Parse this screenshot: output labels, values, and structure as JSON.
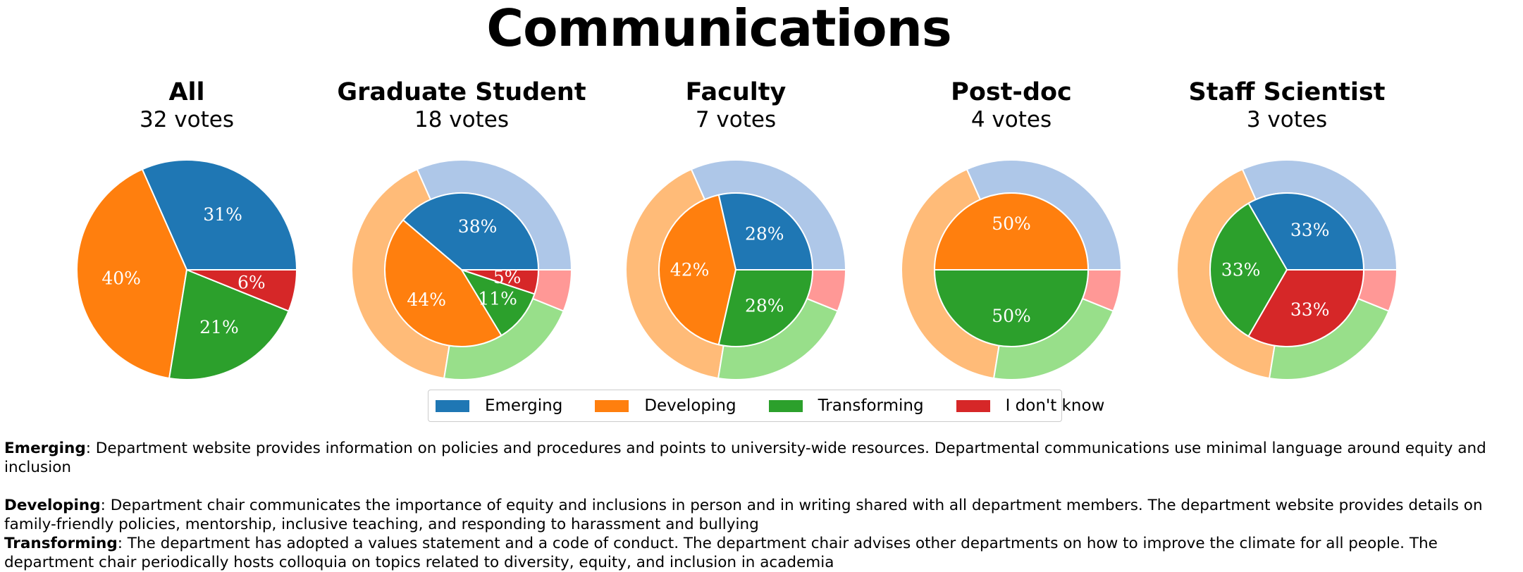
{
  "title": "Communications",
  "colors": {
    "Emerging": "#1f77b4",
    "Developing": "#ff7f0e",
    "Transforming": "#2ca02c",
    "I don't know": "#d62728"
  },
  "light_colors": {
    "Emerging": "#aec7e8",
    "Developing": "#ffbb78",
    "Transforming": "#98df8a",
    "I don't know": "#ff9896"
  },
  "legend": [
    {
      "label": "Emerging",
      "color": "#1f77b4"
    },
    {
      "label": "Developing",
      "color": "#ff7f0e"
    },
    {
      "label": "Transforming",
      "color": "#2ca02c"
    },
    {
      "label": "I don't know",
      "color": "#d62728"
    }
  ],
  "chart_data": [
    {
      "type": "pie",
      "title": "All",
      "votes_label": "32 votes",
      "categories": [
        "Emerging",
        "Developing",
        "Transforming",
        "I don't know"
      ],
      "values": [
        31,
        40,
        21,
        6
      ],
      "labels": [
        "31%",
        "40%",
        "21%",
        "6%"
      ],
      "outer_ring_values": null
    },
    {
      "type": "pie",
      "title": "Graduate Student",
      "votes_label": "18 votes",
      "categories": [
        "Emerging",
        "Developing",
        "Transforming",
        "I don't know"
      ],
      "values": [
        38,
        44,
        11,
        5
      ],
      "labels": [
        "38%",
        "44%",
        "11%",
        "5%"
      ],
      "outer_ring_values": [
        31,
        40,
        21,
        6
      ]
    },
    {
      "type": "pie",
      "title": "Faculty",
      "votes_label": "7 votes",
      "categories": [
        "Emerging",
        "Developing",
        "Transforming",
        "I don't know"
      ],
      "values": [
        28,
        42,
        28,
        0
      ],
      "labels": [
        "28%",
        "42%",
        "28%",
        ""
      ],
      "outer_ring_values": [
        31,
        40,
        21,
        6
      ]
    },
    {
      "type": "pie",
      "title": "Post-doc",
      "votes_label": "4 votes",
      "categories": [
        "Emerging",
        "Developing",
        "Transforming",
        "I don't know"
      ],
      "values": [
        0,
        50,
        50,
        0
      ],
      "labels": [
        "",
        "50%",
        "50%",
        ""
      ],
      "outer_ring_values": [
        31,
        40,
        21,
        6
      ]
    },
    {
      "type": "pie",
      "title": "Staff Scientist",
      "votes_label": "3 votes",
      "categories": [
        "Emerging",
        "Developing",
        "Transforming",
        "I don't know"
      ],
      "values": [
        33,
        0,
        33,
        33
      ],
      "labels": [
        "33%",
        "",
        "33%",
        "33%"
      ],
      "outer_ring_values": [
        31,
        40,
        21,
        6
      ]
    }
  ],
  "descriptions": [
    {
      "term": "Emerging",
      "text": ": Department website provides information on policies and procedures and points to university-wide resources. Departmental communications use minimal language around equity and inclusion"
    },
    {
      "term": "Developing",
      "text": ": Department chair communicates the importance of equity and inclusions in person and in writing shared with all department members. The department website provides details on family-friendly policies, mentorship, inclusive teaching, and responding to harassment and bullying"
    },
    {
      "term": "Transforming",
      "text": ": The department has adopted a values statement and a code of conduct. The department chair advises other departments on how to improve the climate for all people. The department chair periodically hosts colloquia on topics related to diversity, equity, and inclusion in academia"
    }
  ]
}
